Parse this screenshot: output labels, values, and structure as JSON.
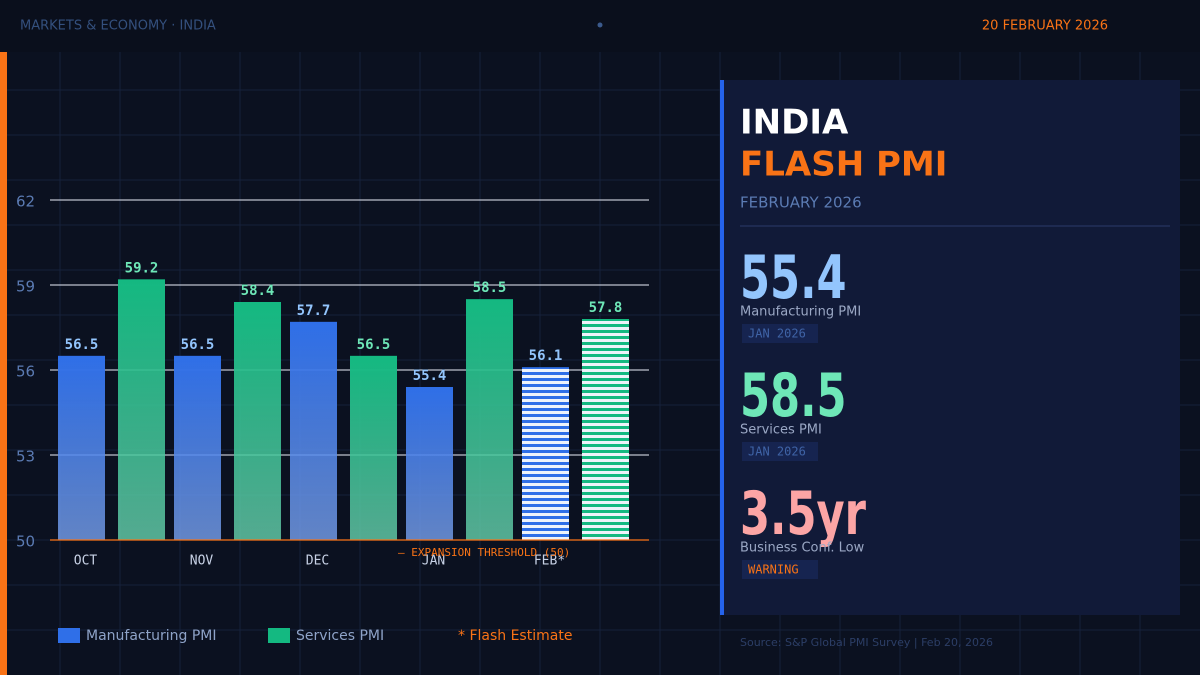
{
  "header": {
    "section": "MARKETS & ECONOMY · INDIA",
    "date": "20 FEBRUARY 2026"
  },
  "chart_data": {
    "type": "bar",
    "categories": [
      "OCT",
      "NOV",
      "DEC",
      "JAN",
      "FEB*"
    ],
    "series": [
      {
        "name": "Manufacturing PMI",
        "color": "#2f6fe8",
        "values": [
          56.5,
          56.5,
          57.7,
          55.4,
          56.1
        ]
      },
      {
        "name": "Services PMI",
        "color": "#14b981",
        "values": [
          59.2,
          58.4,
          56.5,
          58.5,
          57.8
        ]
      }
    ],
    "estimate": [
      false,
      false,
      false,
      false,
      true
    ],
    "ylim": [
      50,
      62
    ],
    "yticks": [
      50,
      53,
      56,
      59,
      62
    ],
    "grid": true,
    "threshold": 50,
    "annotation": "— EXPANSION THRESHOLD (50)",
    "legend_note": "* Flash Estimate"
  },
  "panel": {
    "title": "INDIA",
    "subtitle": "FLASH PMI",
    "period": "FEBRUARY 2026",
    "metrics": [
      {
        "value": "55.4",
        "label": "Manufacturing PMI",
        "tag": "JAN 2026"
      },
      {
        "value": "58.5",
        "label": "Services PMI",
        "tag": "JAN 2026"
      },
      {
        "value": "3.5yr",
        "label": "Business Conf. Low",
        "tag": "WARNING"
      }
    ]
  },
  "source": "Source: S&P Global PMI Survey | Feb 20, 2026"
}
